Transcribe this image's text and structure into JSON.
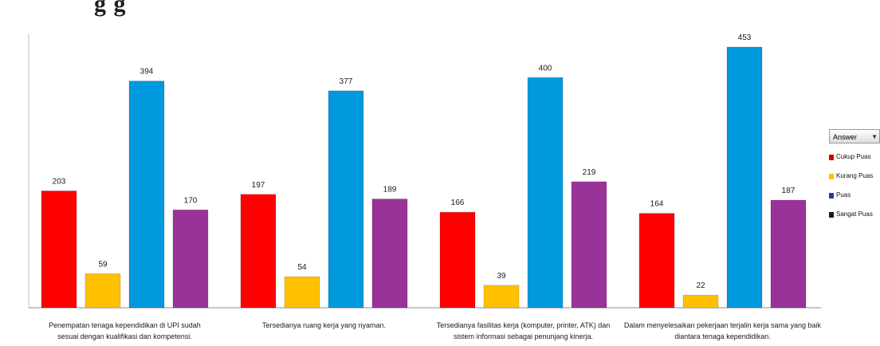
{
  "heading": "g    g",
  "chart_data": {
    "type": "bar",
    "categories": [
      "Penempatan tenaga kependidikan di UPI sudah sesuai dengan kualifikasi dan kompetensi.",
      "Tersedianya ruang kerja yang nyaman.",
      "Tersedianya fasilitas kerja (komputer, printer, ATK) dan sistem informasi sebagai penunjang kinerja.",
      "Dalam menyelesaikan pekerjaan terjalin kerja sama yang baik diantara tenaga kependidikan."
    ],
    "series": [
      {
        "name": "Cukup Puas",
        "color": "#ff0000",
        "values": [
          203,
          197,
          166,
          164
        ]
      },
      {
        "name": "Kurang Puas",
        "color": "#ffc000",
        "values": [
          59,
          54,
          39,
          22
        ]
      },
      {
        "name": "Puas",
        "color": "#0099dd",
        "values": [
          394,
          377,
          400,
          453
        ]
      },
      {
        "name": "Sangat Puas",
        "color": "#993399",
        "values": [
          170,
          189,
          219,
          187
        ]
      }
    ],
    "ylim": [
      0,
      460
    ],
    "grid": false,
    "legend_position": "right",
    "legend_title": "Answer"
  }
}
